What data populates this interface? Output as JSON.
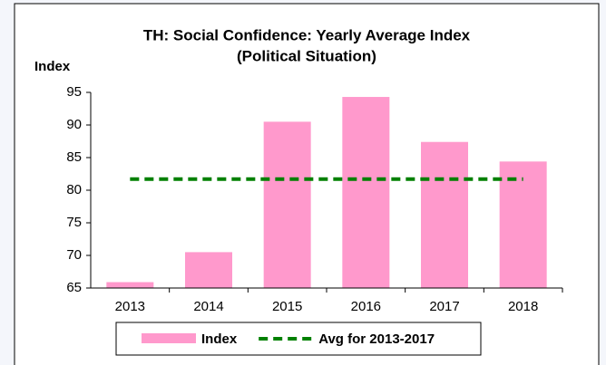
{
  "chart_data": {
    "type": "bar",
    "title": "TH: Social Confidence: Yearly Average Index",
    "subtitle": "(Political Situation)",
    "y_label": "Index",
    "categories": [
      "2013",
      "2014",
      "2015",
      "2016",
      "2017",
      "2018"
    ],
    "series": [
      {
        "name": "Index",
        "type": "bar",
        "color": "#ff99cc",
        "values": [
          65.9,
          70.5,
          90.5,
          94.3,
          87.4,
          84.4
        ]
      },
      {
        "name": "Avg for 2013-2017",
        "type": "line",
        "color": "#008000",
        "values": [
          81.7,
          81.7,
          81.7,
          81.7,
          81.7,
          81.7
        ]
      }
    ],
    "ylim": [
      65,
      95
    ],
    "yticks": [
      65,
      70,
      75,
      80,
      85,
      90,
      95
    ],
    "legend": "bottom"
  }
}
